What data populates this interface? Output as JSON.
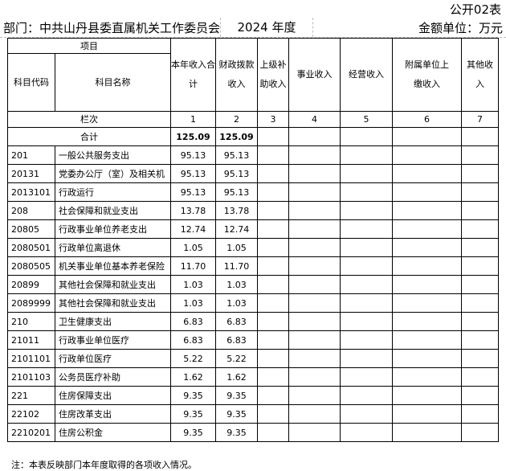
{
  "form_no": "公开02表",
  "department": "部门：中共山丹县委直属机关工作委员会",
  "year": "2024 年度",
  "unit": "金额单位：万元",
  "headers": {
    "item": "项目",
    "code": "科目代码",
    "name": "科目名称",
    "cols": [
      "本年收入合计",
      "财政拨款收入",
      "上级补助收入",
      "事业收入",
      "经营收入",
      "附属单位上缴收入",
      "其他收入"
    ],
    "row_index_label": "栏次",
    "col_numbers": [
      "1",
      "2",
      "3",
      "4",
      "5",
      "6",
      "7"
    ]
  },
  "total": {
    "label": "合计",
    "values": [
      "125.09",
      "125.09",
      "",
      "",
      "",
      "",
      ""
    ]
  },
  "rows": [
    {
      "code": "201",
      "name": "一般公共服务支出",
      "values": [
        "95.13",
        "95.13",
        "",
        "",
        "",
        "",
        ""
      ]
    },
    {
      "code": "20131",
      "name": "党委办公厅（室）及相关机",
      "values": [
        "95.13",
        "95.13",
        "",
        "",
        "",
        "",
        ""
      ]
    },
    {
      "code": "2013101",
      "name": "行政运行",
      "values": [
        "95.13",
        "95.13",
        "",
        "",
        "",
        "",
        ""
      ]
    },
    {
      "code": "208",
      "name": "社会保障和就业支出",
      "values": [
        "13.78",
        "13.78",
        "",
        "",
        "",
        "",
        ""
      ]
    },
    {
      "code": "20805",
      "name": "行政事业单位养老支出",
      "values": [
        "12.74",
        "12.74",
        "",
        "",
        "",
        "",
        ""
      ]
    },
    {
      "code": "2080501",
      "name": "行政单位离退休",
      "values": [
        "1.05",
        "1.05",
        "",
        "",
        "",
        "",
        ""
      ]
    },
    {
      "code": "2080505",
      "name": "机关事业单位基本养老保险",
      "values": [
        "11.70",
        "11.70",
        "",
        "",
        "",
        "",
        ""
      ]
    },
    {
      "code": "20899",
      "name": "其他社会保障和就业支出",
      "values": [
        "1.03",
        "1.03",
        "",
        "",
        "",
        "",
        ""
      ]
    },
    {
      "code": "2089999",
      "name": "其他社会保障和就业支出",
      "values": [
        "1.03",
        "1.03",
        "",
        "",
        "",
        "",
        ""
      ]
    },
    {
      "code": "210",
      "name": "卫生健康支出",
      "values": [
        "6.83",
        "6.83",
        "",
        "",
        "",
        "",
        ""
      ]
    },
    {
      "code": "21011",
      "name": "行政事业单位医疗",
      "values": [
        "6.83",
        "6.83",
        "",
        "",
        "",
        "",
        ""
      ]
    },
    {
      "code": "2101101",
      "name": "行政单位医疗",
      "values": [
        "5.22",
        "5.22",
        "",
        "",
        "",
        "",
        ""
      ]
    },
    {
      "code": "2101103",
      "name": "公务员医疗补助",
      "values": [
        "1.62",
        "1.62",
        "",
        "",
        "",
        "",
        ""
      ]
    },
    {
      "code": "221",
      "name": "住房保障支出",
      "values": [
        "9.35",
        "9.35",
        "",
        "",
        "",
        "",
        ""
      ]
    },
    {
      "code": "22102",
      "name": "住房改革支出",
      "values": [
        "9.35",
        "9.35",
        "",
        "",
        "",
        "",
        ""
      ]
    },
    {
      "code": "2210201",
      "name": "住房公积金",
      "values": [
        "9.35",
        "9.35",
        "",
        "",
        "",
        "",
        ""
      ]
    }
  ],
  "note": "注：本表反映部门本年度取得的各项收入情况。"
}
